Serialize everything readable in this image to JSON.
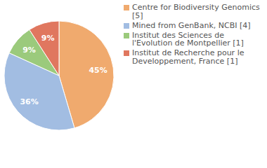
{
  "chart_data": {
    "type": "pie",
    "categories": [
      "Centre for Biodiversity Genomics [5]",
      "Mined from GenBank, NCBI [4]",
      "Institut des Sciences de l'Evolution de Montpellier [1]",
      "Institut de Recherche pour le Developpement, France [1]"
    ],
    "values": [
      45,
      36,
      9,
      9
    ],
    "value_labels": [
      "45%",
      "36%",
      "9%",
      "9%"
    ],
    "colors": [
      "#f0aa6e",
      "#a2bde2",
      "#9bca7c",
      "#e0775f"
    ],
    "data_labels": true,
    "legend": "right"
  }
}
